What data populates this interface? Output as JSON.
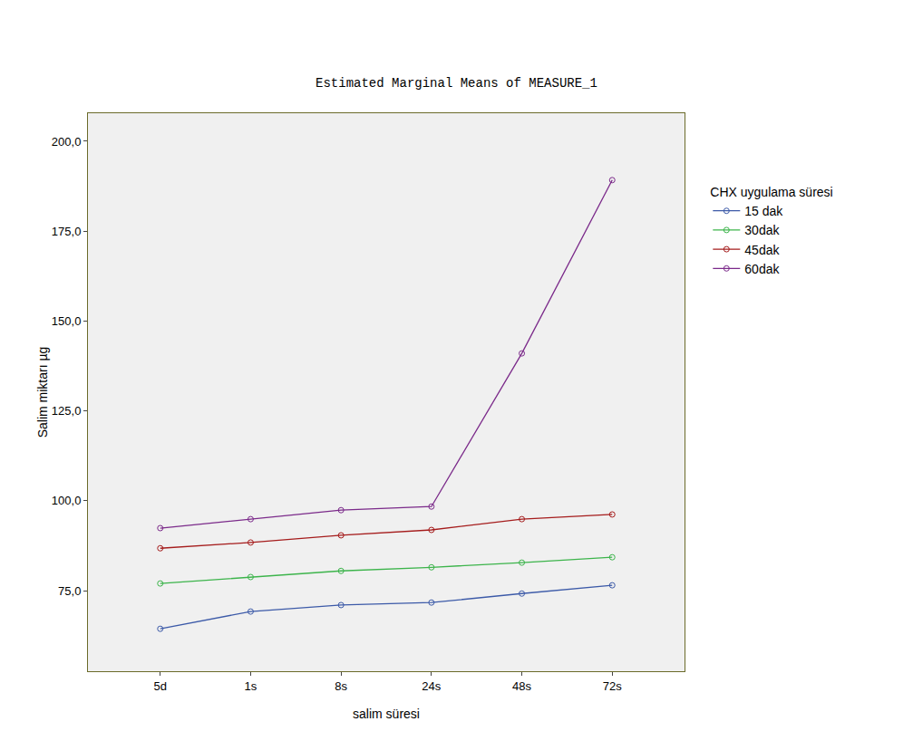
{
  "chart_data": {
    "type": "line",
    "title": "Estimated Marginal Means of MEASURE_1",
    "x_label": "salim süresi",
    "y_label": "Salim miktarı µg",
    "legend_title": "CHX uygulama süresi",
    "categories": [
      "5d",
      "1s",
      "8s",
      "24s",
      "48s",
      "72s"
    ],
    "series": [
      {
        "name": "15 dak",
        "color": "#3c5aa8",
        "values": [
          64.4,
          69.2,
          71.0,
          71.7,
          74.2,
          76.5
        ]
      },
      {
        "name": "30dak",
        "color": "#3cb44b",
        "values": [
          77.0,
          78.8,
          80.5,
          81.5,
          82.8,
          84.3
        ]
      },
      {
        "name": "45dak",
        "color": "#a51c1c",
        "values": [
          86.8,
          88.4,
          90.4,
          91.9,
          94.9,
          96.2
        ]
      },
      {
        "name": "60dak",
        "color": "#7b2a8a",
        "values": [
          92.4,
          94.9,
          97.4,
          98.4,
          141.0,
          189.2
        ]
      }
    ],
    "ylim": [
      52.6,
      207.8
    ],
    "yticks": [
      {
        "value": 75,
        "label": "75,0"
      },
      {
        "value": 100,
        "label": "100,0"
      },
      {
        "value": 125,
        "label": "125,0"
      },
      {
        "value": 150,
        "label": "150,0"
      },
      {
        "value": 175,
        "label": "175,0"
      },
      {
        "value": 200,
        "label": "200,0"
      }
    ],
    "grid": false,
    "legend": "right",
    "marker": "circle-open",
    "line_style": "solid"
  }
}
